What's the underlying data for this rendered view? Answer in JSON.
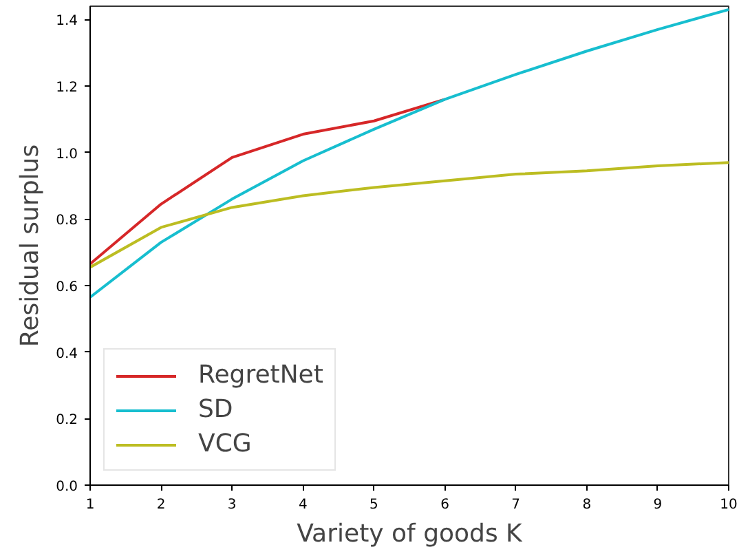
{
  "chart_data": {
    "type": "line",
    "xlabel": "Variety of goods K",
    "ylabel": "Residual surplus",
    "x": [
      1,
      2,
      3,
      4,
      5,
      6,
      7,
      8,
      9,
      10
    ],
    "series": [
      {
        "name": "RegretNet",
        "color": "#d62728",
        "x": [
          1,
          2,
          3,
          4,
          5,
          6
        ],
        "values": [
          0.665,
          0.845,
          0.985,
          1.055,
          1.095,
          1.16
        ]
      },
      {
        "name": "SD",
        "color": "#17becf",
        "values": [
          0.565,
          0.73,
          0.86,
          0.975,
          1.07,
          1.16,
          1.235,
          1.305,
          1.37,
          1.43
        ]
      },
      {
        "name": "VCG",
        "color": "#bcbd22",
        "values": [
          0.655,
          0.775,
          0.835,
          0.87,
          0.895,
          0.915,
          0.935,
          0.945,
          0.96,
          0.97
        ]
      }
    ],
    "xlim": [
      1,
      10
    ],
    "ylim": [
      0,
      1.44
    ],
    "xticks": [
      1,
      2,
      3,
      4,
      5,
      6,
      7,
      8,
      9,
      10
    ],
    "yticks": [
      {
        "value": 0,
        "label": "0.0"
      },
      {
        "value": 0.2,
        "label": "0.2"
      },
      {
        "value": 0.4,
        "label": "0.4"
      },
      {
        "value": 0.6,
        "label": "0.6"
      },
      {
        "value": 0.8,
        "label": "0.8"
      },
      {
        "value": 1.0,
        "label": "1.0"
      },
      {
        "value": 1.2,
        "label": "1.2"
      },
      {
        "value": 1.4,
        "label": "1.4"
      }
    ],
    "legend": "bottom left",
    "grid": false,
    "line_style": "solid",
    "marker": "none"
  }
}
